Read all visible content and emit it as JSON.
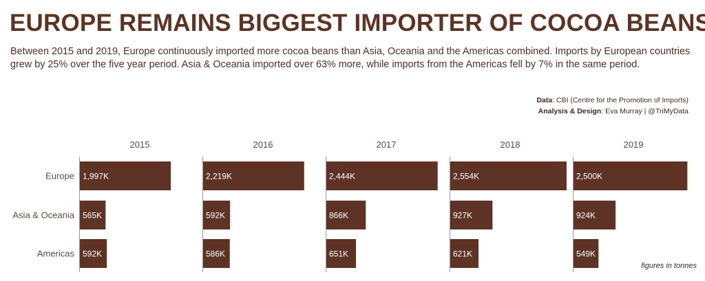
{
  "title": "EUROPE REMAINS BIGGEST IMPORTER OF COCOA BEANS",
  "subtitle": "Between 2015 and 2019, Europe continuously imported more cocoa beans than Asia, Oceania and the Americas combined. Imports by European countries grew by 25% over the five year period. Asia & Oceania imported over 63% more, while imports from the Americas fell by 7% in the same period.",
  "credits": {
    "data_label": "Data",
    "data_value": ": CBI (Centre for the Promotion of Imports)",
    "design_label": "Analysis & Design",
    "design_value": ": Eva Murray | @TriMyData"
  },
  "note": "figures in tonnes",
  "colors": {
    "bar": "#5e3325",
    "axis": "#9a9a9a"
  },
  "chart_data": {
    "type": "bar",
    "orientation": "horizontal",
    "categories": [
      "Europe",
      "Asia & Oceania",
      "Americas"
    ],
    "panels": [
      {
        "year": "2015",
        "values": [
          1997,
          565,
          592
        ],
        "labels": [
          "1,997K",
          "565K",
          "592K"
        ]
      },
      {
        "year": "2016",
        "values": [
          2219,
          592,
          586
        ],
        "labels": [
          "2,219K",
          "592K",
          "586K"
        ]
      },
      {
        "year": "2017",
        "values": [
          2444,
          866,
          651
        ],
        "labels": [
          "2,444K",
          "866K",
          "651K"
        ]
      },
      {
        "year": "2018",
        "values": [
          2554,
          927,
          621
        ],
        "labels": [
          "2,554K",
          "927K",
          "621K"
        ]
      },
      {
        "year": "2019",
        "values": [
          2500,
          924,
          549
        ],
        "labels": [
          "2,500K",
          "924K",
          "549K"
        ]
      }
    ],
    "xlim": [
      0,
      2600
    ],
    "grid": false,
    "legend": "none"
  }
}
